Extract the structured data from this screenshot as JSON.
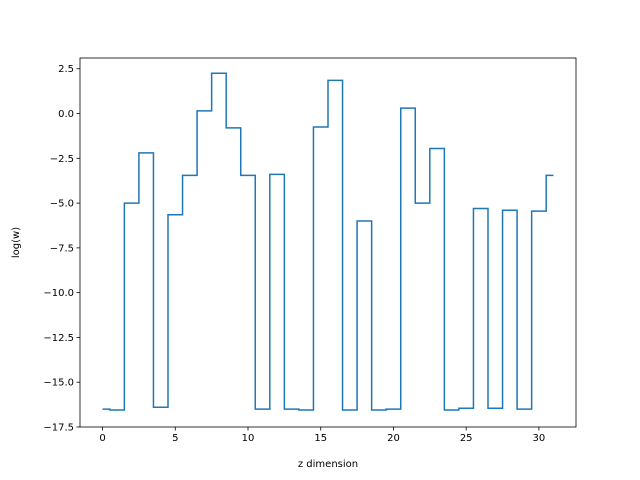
{
  "chart_data": {
    "type": "line",
    "drawstyle": "steps-mid",
    "title": "",
    "xlabel": "z dimension",
    "ylabel": "log(w)",
    "xlim": [
      -1.55,
      32.55
    ],
    "ylim": [
      -17.5,
      3.1
    ],
    "xticks": [
      0,
      5,
      10,
      15,
      20,
      25,
      30
    ],
    "xtick_labels": [
      "0",
      "5",
      "10",
      "15",
      "20",
      "25",
      "30"
    ],
    "yticks": [
      2.5,
      0.0,
      -2.5,
      -5.0,
      -7.5,
      -10.0,
      -12.5,
      -15.0,
      -17.5
    ],
    "ytick_labels": [
      "2.5",
      "0.0",
      "−2.5",
      "−5.0",
      "−7.5",
      "−10.0",
      "−12.5",
      "−15.0",
      "−17.5"
    ],
    "grid": false,
    "legend": "none",
    "series": [
      {
        "color": "#1f77b4",
        "x": [
          0,
          1,
          2,
          3,
          4,
          5,
          6,
          7,
          8,
          9,
          10,
          11,
          12,
          13,
          14,
          15,
          16,
          17,
          18,
          19,
          20,
          21,
          22,
          23,
          24,
          25,
          26,
          27,
          28,
          29,
          30,
          31
        ],
        "y": [
          -16.5,
          -16.55,
          -5.0,
          -2.2,
          -16.4,
          -5.65,
          -3.45,
          0.15,
          2.25,
          -0.8,
          -3.45,
          -16.5,
          -3.4,
          -16.5,
          -16.55,
          -0.75,
          1.85,
          -16.55,
          -6.0,
          -16.55,
          -16.5,
          0.3,
          -5.0,
          -1.95,
          -16.55,
          -16.45,
          -5.3,
          -16.45,
          -5.4,
          -16.5,
          -5.45,
          -3.45
        ]
      }
    ]
  }
}
